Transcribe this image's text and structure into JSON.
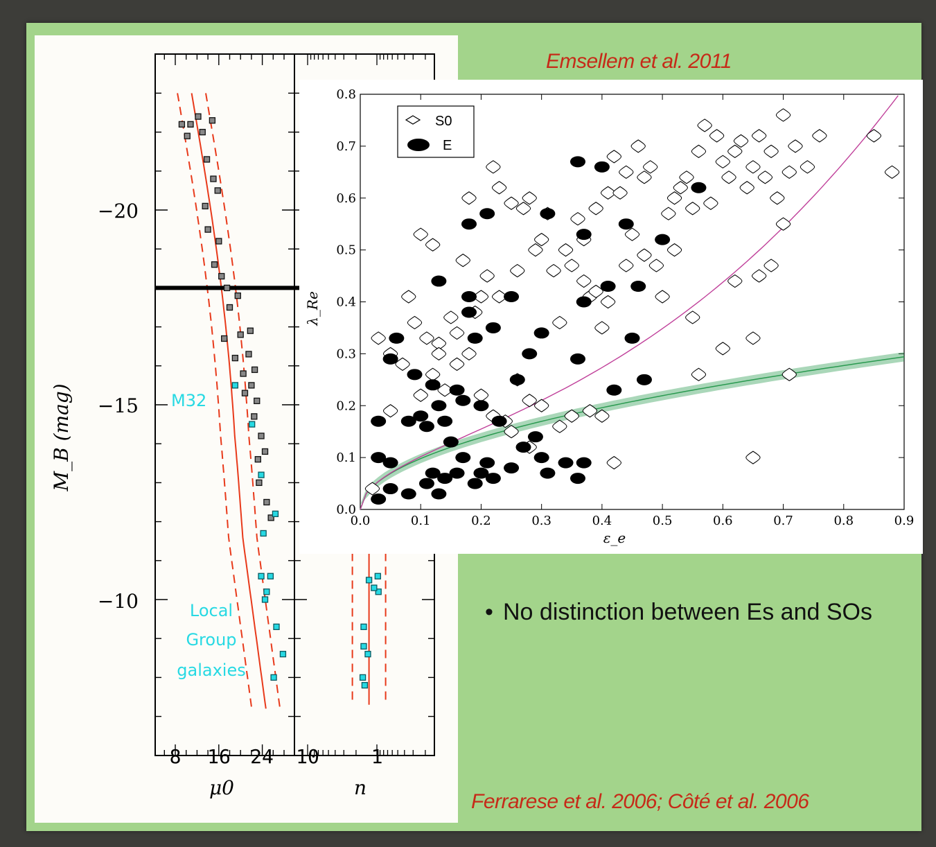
{
  "slide": {
    "caption_top": "Emsellem et al. 2011",
    "caption_bottom": "Ferrarese et al. 2006; Côté et al. 2006",
    "bullet_symbol": "•",
    "bullet_text": "No distinction between Es and SOs"
  },
  "colors": {
    "slide_bg": "#a3d48b",
    "caption": "#c62a18",
    "fit_curve": "#e8391a",
    "local_group_marker": "#27d9e3",
    "magenta_curve": "#c0409a",
    "green_band": "#2a9a50"
  },
  "chart_data": [
    {
      "type": "scatter",
      "panel": "left",
      "ylabel": "M_B (mag)",
      "xlabel_left": "μ0",
      "xlabel_right": "n",
      "y_ticks": [
        "−20",
        "−15",
        "−10"
      ],
      "x_ticks_left": [
        "8",
        "16",
        "24"
      ],
      "x_ticks_right": [
        "10",
        "1"
      ],
      "ylim": [
        -23.5,
        -6.8
      ],
      "xlim_left": [
        4,
        31
      ],
      "annotations": [
        "M32",
        "Local Group galaxies"
      ],
      "annotation_lines": [
        "Local",
        "Group",
        "galaxies"
      ],
      "divider_MB": -18.0,
      "series": [
        {
          "values_mu0_MB": [
            [
              9.2,
              -22.2
            ],
            [
              10.8,
              -22.2
            ],
            [
              12.2,
              -22.4
            ],
            [
              13.0,
              -22.0
            ],
            [
              10.2,
              -21.9
            ],
            [
              14.8,
              -22.3
            ],
            [
              13.8,
              -21.3
            ],
            [
              15.0,
              -20.8
            ],
            [
              13.5,
              -20.1
            ],
            [
              15.8,
              -20.5
            ],
            [
              14.0,
              -19.5
            ],
            [
              16.0,
              -19.2
            ],
            [
              15.2,
              -18.6
            ],
            [
              16.5,
              -18.3
            ],
            [
              17.5,
              -18.0
            ],
            [
              18.0,
              -17.5
            ],
            [
              19.5,
              -17.8
            ],
            [
              17.0,
              -16.7
            ],
            [
              19.0,
              -16.2
            ],
            [
              20.0,
              -16.8
            ],
            [
              20.5,
              -15.8
            ],
            [
              21.5,
              -16.3
            ],
            [
              22.0,
              -15.5
            ],
            [
              23.0,
              -15.1
            ],
            [
              22.5,
              -14.7
            ],
            [
              23.8,
              -14.2
            ],
            [
              24.5,
              -13.8
            ],
            [
              23.4,
              -13.0
            ],
            [
              24.8,
              -12.5
            ],
            [
              25.6,
              -12.1
            ],
            [
              20.8,
              -15.3
            ],
            [
              21.8,
              -16.9
            ],
            [
              22.6,
              -15.9
            ],
            [
              23.2,
              -13.6
            ]
          ],
          "name": ""
        },
        {
          "name": "",
          "values_mu0_MB": [
            [
              19.0,
              -15.5
            ],
            [
              22.1,
              -14.5
            ],
            [
              23.8,
              -13.2
            ],
            [
              26.4,
              -12.2
            ],
            [
              24.2,
              -11.7
            ],
            [
              23.8,
              -10.6
            ],
            [
              25.5,
              -10.6
            ],
            [
              24.8,
              -10.2
            ],
            [
              26.6,
              -9.3
            ],
            [
              27.8,
              -8.6
            ],
            [
              26.1,
              -8.0
            ],
            [
              24.5,
              -10.0
            ]
          ]
        }
      ],
      "local_group_n": [
        0.97,
        0.95,
        1.1,
        1.55,
        1.35,
        1.6,
        1.3,
        1.55,
        1.5
      ]
    },
    {
      "type": "scatter",
      "panel": "right",
      "xlabel": "ε_e",
      "ylabel": "λ_Re",
      "xlim": [
        0,
        0.9
      ],
      "ylim": [
        0,
        0.8
      ],
      "x_ticks": [
        "0.0",
        "0.1",
        "0.2",
        "0.3",
        "0.4",
        "0.5",
        "0.6",
        "0.7",
        "0.8",
        "0.9"
      ],
      "y_ticks": [
        "0.0",
        "0.1",
        "0.2",
        "0.3",
        "0.4",
        "0.5",
        "0.6",
        "0.7",
        "0.8"
      ],
      "grid": false,
      "legend_position": "top-left",
      "series": [
        {
          "name": "S0",
          "marker": "open-diamond",
          "points": [
            [
              0.03,
              0.33
            ],
            [
              0.05,
              0.3
            ],
            [
              0.08,
              0.41
            ],
            [
              0.1,
              0.53
            ],
            [
              0.12,
              0.51
            ],
            [
              0.13,
              0.32
            ],
            [
              0.15,
              0.37
            ],
            [
              0.17,
              0.48
            ],
            [
              0.18,
              0.6
            ],
            [
              0.2,
              0.41
            ],
            [
              0.21,
              0.45
            ],
            [
              0.22,
              0.66
            ],
            [
              0.23,
              0.62
            ],
            [
              0.25,
              0.59
            ],
            [
              0.27,
              0.58
            ],
            [
              0.28,
              0.6
            ],
            [
              0.3,
              0.52
            ],
            [
              0.31,
              0.57
            ],
            [
              0.33,
              0.36
            ],
            [
              0.35,
              0.47
            ],
            [
              0.36,
              0.56
            ],
            [
              0.37,
              0.44
            ],
            [
              0.38,
              0.41
            ],
            [
              0.39,
              0.58
            ],
            [
              0.4,
              0.35
            ],
            [
              0.41,
              0.61
            ],
            [
              0.42,
              0.68
            ],
            [
              0.43,
              0.61
            ],
            [
              0.44,
              0.65
            ],
            [
              0.45,
              0.53
            ],
            [
              0.46,
              0.7
            ],
            [
              0.47,
              0.64
            ],
            [
              0.48,
              0.66
            ],
            [
              0.5,
              0.41
            ],
            [
              0.51,
              0.57
            ],
            [
              0.52,
              0.6
            ],
            [
              0.53,
              0.62
            ],
            [
              0.54,
              0.64
            ],
            [
              0.55,
              0.58
            ],
            [
              0.56,
              0.69
            ],
            [
              0.57,
              0.74
            ],
            [
              0.58,
              0.59
            ],
            [
              0.59,
              0.72
            ],
            [
              0.6,
              0.67
            ],
            [
              0.61,
              0.64
            ],
            [
              0.62,
              0.69
            ],
            [
              0.63,
              0.71
            ],
            [
              0.64,
              0.62
            ],
            [
              0.65,
              0.66
            ],
            [
              0.66,
              0.72
            ],
            [
              0.67,
              0.64
            ],
            [
              0.68,
              0.69
            ],
            [
              0.69,
              0.6
            ],
            [
              0.7,
              0.76
            ],
            [
              0.71,
              0.65
            ],
            [
              0.72,
              0.7
            ],
            [
              0.74,
              0.66
            ],
            [
              0.76,
              0.72
            ],
            [
              0.7,
              0.55
            ],
            [
              0.68,
              0.47
            ],
            [
              0.65,
              0.33
            ],
            [
              0.6,
              0.31
            ],
            [
              0.56,
              0.26
            ],
            [
              0.55,
              0.37
            ],
            [
              0.62,
              0.44
            ],
            [
              0.66,
              0.45
            ],
            [
              0.71,
              0.26
            ],
            [
              0.85,
              0.72
            ],
            [
              0.88,
              0.65
            ],
            [
              0.65,
              0.1
            ],
            [
              0.1,
              0.22
            ],
            [
              0.12,
              0.26
            ],
            [
              0.14,
              0.23
            ],
            [
              0.16,
              0.28
            ],
            [
              0.18,
              0.3
            ],
            [
              0.2,
              0.22
            ],
            [
              0.22,
              0.18
            ],
            [
              0.24,
              0.17
            ],
            [
              0.26,
              0.25
            ],
            [
              0.28,
              0.21
            ],
            [
              0.3,
              0.2
            ],
            [
              0.33,
              0.16
            ],
            [
              0.35,
              0.18
            ],
            [
              0.38,
              0.19
            ],
            [
              0.4,
              0.18
            ],
            [
              0.42,
              0.09
            ],
            [
              0.25,
              0.15
            ],
            [
              0.28,
              0.12
            ],
            [
              0.02,
              0.04
            ],
            [
              0.05,
              0.19
            ],
            [
              0.07,
              0.28
            ],
            [
              0.09,
              0.36
            ],
            [
              0.11,
              0.33
            ],
            [
              0.13,
              0.3
            ],
            [
              0.16,
              0.34
            ],
            [
              0.19,
              0.38
            ],
            [
              0.23,
              0.41
            ],
            [
              0.26,
              0.46
            ],
            [
              0.29,
              0.5
            ],
            [
              0.32,
              0.46
            ],
            [
              0.34,
              0.5
            ],
            [
              0.37,
              0.52
            ],
            [
              0.39,
              0.42
            ],
            [
              0.41,
              0.4
            ],
            [
              0.44,
              0.47
            ],
            [
              0.47,
              0.49
            ],
            [
              0.49,
              0.47
            ],
            [
              0.52,
              0.5
            ]
          ]
        },
        {
          "name": "E",
          "marker": "filled-ellipse",
          "points": [
            [
              0.03,
              0.02
            ],
            [
              0.05,
              0.04
            ],
            [
              0.08,
              0.03
            ],
            [
              0.11,
              0.05
            ],
            [
              0.12,
              0.07
            ],
            [
              0.13,
              0.03
            ],
            [
              0.14,
              0.06
            ],
            [
              0.16,
              0.07
            ],
            [
              0.17,
              0.1
            ],
            [
              0.19,
              0.05
            ],
            [
              0.2,
              0.07
            ],
            [
              0.21,
              0.09
            ],
            [
              0.22,
              0.06
            ],
            [
              0.25,
              0.08
            ],
            [
              0.27,
              0.12
            ],
            [
              0.3,
              0.1
            ],
            [
              0.31,
              0.07
            ],
            [
              0.34,
              0.09
            ],
            [
              0.36,
              0.06
            ],
            [
              0.37,
              0.09
            ],
            [
              0.03,
              0.1
            ],
            [
              0.05,
              0.09
            ],
            [
              0.03,
              0.17
            ],
            [
              0.08,
              0.17
            ],
            [
              0.1,
              0.18
            ],
            [
              0.11,
              0.16
            ],
            [
              0.13,
              0.2
            ],
            [
              0.14,
              0.17
            ],
            [
              0.16,
              0.23
            ],
            [
              0.17,
              0.21
            ],
            [
              0.12,
              0.24
            ],
            [
              0.15,
              0.13
            ],
            [
              0.2,
              0.2
            ],
            [
              0.23,
              0.17
            ],
            [
              0.26,
              0.25
            ],
            [
              0.28,
              0.3
            ],
            [
              0.05,
              0.29
            ],
            [
              0.06,
              0.33
            ],
            [
              0.09,
              0.26
            ],
            [
              0.13,
              0.44
            ],
            [
              0.18,
              0.38
            ],
            [
              0.19,
              0.33
            ],
            [
              0.22,
              0.35
            ],
            [
              0.18,
              0.41
            ],
            [
              0.25,
              0.41
            ],
            [
              0.3,
              0.34
            ],
            [
              0.36,
              0.29
            ],
            [
              0.37,
              0.4
            ],
            [
              0.41,
              0.43
            ],
            [
              0.45,
              0.33
            ],
            [
              0.47,
              0.25
            ],
            [
              0.42,
              0.23
            ],
            [
              0.29,
              0.14
            ],
            [
              0.18,
              0.55
            ],
            [
              0.21,
              0.57
            ],
            [
              0.31,
              0.57
            ],
            [
              0.37,
              0.53
            ],
            [
              0.44,
              0.55
            ],
            [
              0.36,
              0.67
            ],
            [
              0.4,
              0.66
            ],
            [
              0.5,
              0.52
            ],
            [
              0.46,
              0.43
            ],
            [
              0.56,
              0.62
            ]
          ]
        }
      ],
      "curves": [
        "magenta",
        "green-band"
      ],
      "legend_labels": [
        "S0",
        "E"
      ]
    }
  ]
}
